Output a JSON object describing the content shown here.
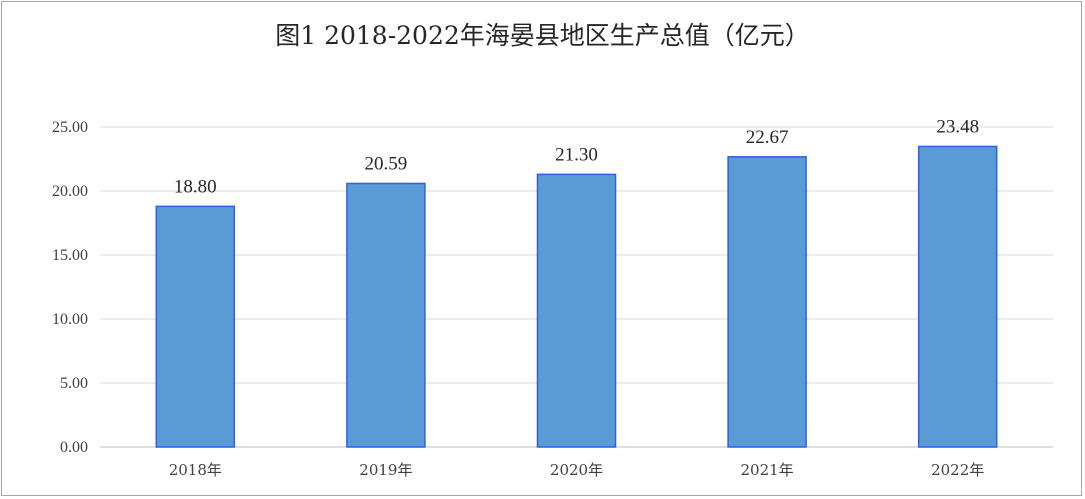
{
  "chart_data": {
    "type": "bar",
    "title": "图1  2018-2022年海晏县地区生产总值（亿元）",
    "categories": [
      "2018年",
      "2019年",
      "2020年",
      "2021年",
      "2022年"
    ],
    "values": [
      18.8,
      20.59,
      21.3,
      22.67,
      23.48
    ],
    "data_labels": [
      "18.80",
      "20.59",
      "21.30",
      "22.67",
      "23.48"
    ],
    "ylim": [
      0,
      25
    ],
    "yticks": [
      "0.00",
      "5.00",
      "10.00",
      "15.00",
      "20.00",
      "25.00"
    ],
    "grid": true,
    "bar_color": "#5b9bd5",
    "bar_edge_color": "#2f5fe8",
    "xlabel": "",
    "ylabel": ""
  }
}
